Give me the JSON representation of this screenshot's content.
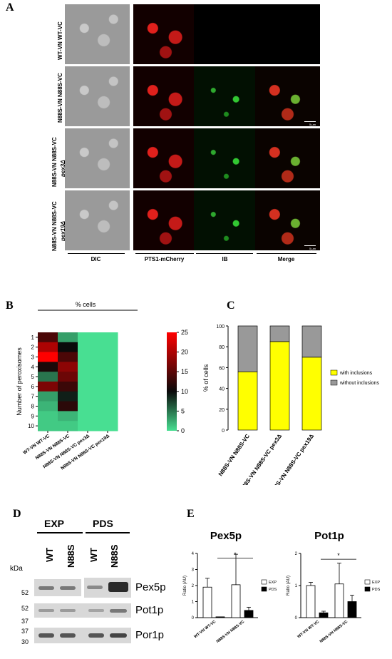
{
  "panel_a": {
    "letter": "A",
    "rows": [
      "WT-VN WT-VC",
      "N88S-VN N88S-VC",
      "N88S-VN N88S-VC",
      "N88S-VN N88S-VC"
    ],
    "row_suffix": [
      "",
      "",
      "pex3Δ",
      "pex19Δ"
    ],
    "columns": [
      "DIC",
      "PTS1-mCherry",
      "IB",
      "Merge"
    ],
    "scale_label": "5 μm"
  },
  "panel_b": {
    "letter": "B",
    "top_label": "% cells",
    "ylabel": "Number of peroxisomes",
    "colorbar_ticks": [
      "25",
      "20",
      "15",
      "10",
      "5",
      "0"
    ],
    "row_labels": [
      "1",
      "2",
      "3",
      "4",
      "5",
      "6",
      "7",
      "8",
      "9",
      "10"
    ],
    "col_labels": [
      "WT-VN WT-VC",
      "N88S-VN N88S-VC",
      "N88S-VN N88S-VC pex3Δ",
      "N88S-VN N88S-VC pex19Δ"
    ]
  },
  "panel_c": {
    "letter": "C",
    "legend": [
      {
        "label": "with inclusions",
        "color": "#ffff00"
      },
      {
        "label": "without inclusions",
        "color": "#999999"
      }
    ]
  },
  "panel_d": {
    "letter": "D",
    "groups": [
      "EXP",
      "PDS"
    ],
    "lanes": [
      "WT",
      "N88S",
      "WT",
      "N88S"
    ],
    "kda_label": "kDa",
    "markers": [
      "52",
      "52",
      "37",
      "37",
      "30"
    ],
    "proteins": [
      "Pex5p",
      "Pot1p",
      "Por1p"
    ]
  },
  "panel_e": {
    "letter": "E",
    "legend": [
      {
        "label": "EXP",
        "color": "#ffffff"
      },
      {
        "label": "PDS",
        "color": "#000000"
      }
    ],
    "significance": "*"
  },
  "chart_data": [
    {
      "type": "heatmap",
      "title": "% cells",
      "ylabel": "Number of peroxisomes",
      "rows": [
        "1",
        "2",
        "3",
        "4",
        "5",
        "6",
        "7",
        "8",
        "9",
        "10"
      ],
      "columns": [
        "WT-VN WT-VC",
        "N88S-VN N88S-VC",
        "N88S-VN N88S-VC pex3Δ",
        "N88S-VN N88S-VC pex19Δ"
      ],
      "values": [
        [
          14,
          3,
          0,
          0
        ],
        [
          20,
          10,
          0,
          0
        ],
        [
          25,
          14,
          0,
          0
        ],
        [
          11,
          18,
          0,
          0
        ],
        [
          5,
          16,
          0,
          0
        ],
        [
          17,
          13,
          0,
          0
        ],
        [
          3,
          9,
          0,
          0
        ],
        [
          2,
          12,
          0,
          0
        ],
        [
          1,
          2,
          0,
          0
        ],
        [
          1,
          1,
          0,
          0
        ]
      ],
      "colorbar_range": [
        0,
        25
      ]
    },
    {
      "type": "bar",
      "stacked": true,
      "ylabel": "% of cells",
      "categories": [
        "N88S-VN N88S-VC",
        "N88S-VN N88S-VC pex3Δ",
        "N88S-VN N88S-VC pex19Δ"
      ],
      "series": [
        {
          "name": "with inclusions",
          "values": [
            56,
            85,
            70
          ]
        },
        {
          "name": "without inclusions",
          "values": [
            44,
            15,
            30
          ]
        }
      ],
      "ylim": [
        0,
        100
      ],
      "yticks": [
        "0",
        "20",
        "40",
        "60",
        "80",
        "100"
      ]
    },
    {
      "type": "bar",
      "title": "Pex5p",
      "ylabel": "Ratio (AU)",
      "categories": [
        "WT-VN WT-VC",
        "N88S-VN N88S-VC"
      ],
      "series": [
        {
          "name": "EXP",
          "values": [
            1.9,
            2.05
          ],
          "errors": [
            0.55,
            1.9
          ]
        },
        {
          "name": "PDS",
          "values": [
            0.05,
            0.45
          ],
          "errors": [
            0.0,
            0.2
          ]
        }
      ],
      "ylim": [
        0,
        4
      ],
      "yticks": [
        "0",
        "1",
        "2",
        "3",
        "4"
      ]
    },
    {
      "type": "bar",
      "title": "Pot1p",
      "ylabel": "Ratio (AU)",
      "categories": [
        "WT-VN WT-VC",
        "N88S-VN N88S-VC"
      ],
      "series": [
        {
          "name": "EXP",
          "values": [
            1.0,
            1.05
          ],
          "errors": [
            0.1,
            0.65
          ]
        },
        {
          "name": "PDS",
          "values": [
            0.15,
            0.5
          ],
          "errors": [
            0.05,
            0.2
          ]
        }
      ],
      "ylim": [
        0,
        2
      ],
      "yticks": [
        "0",
        "1",
        "2"
      ]
    }
  ]
}
